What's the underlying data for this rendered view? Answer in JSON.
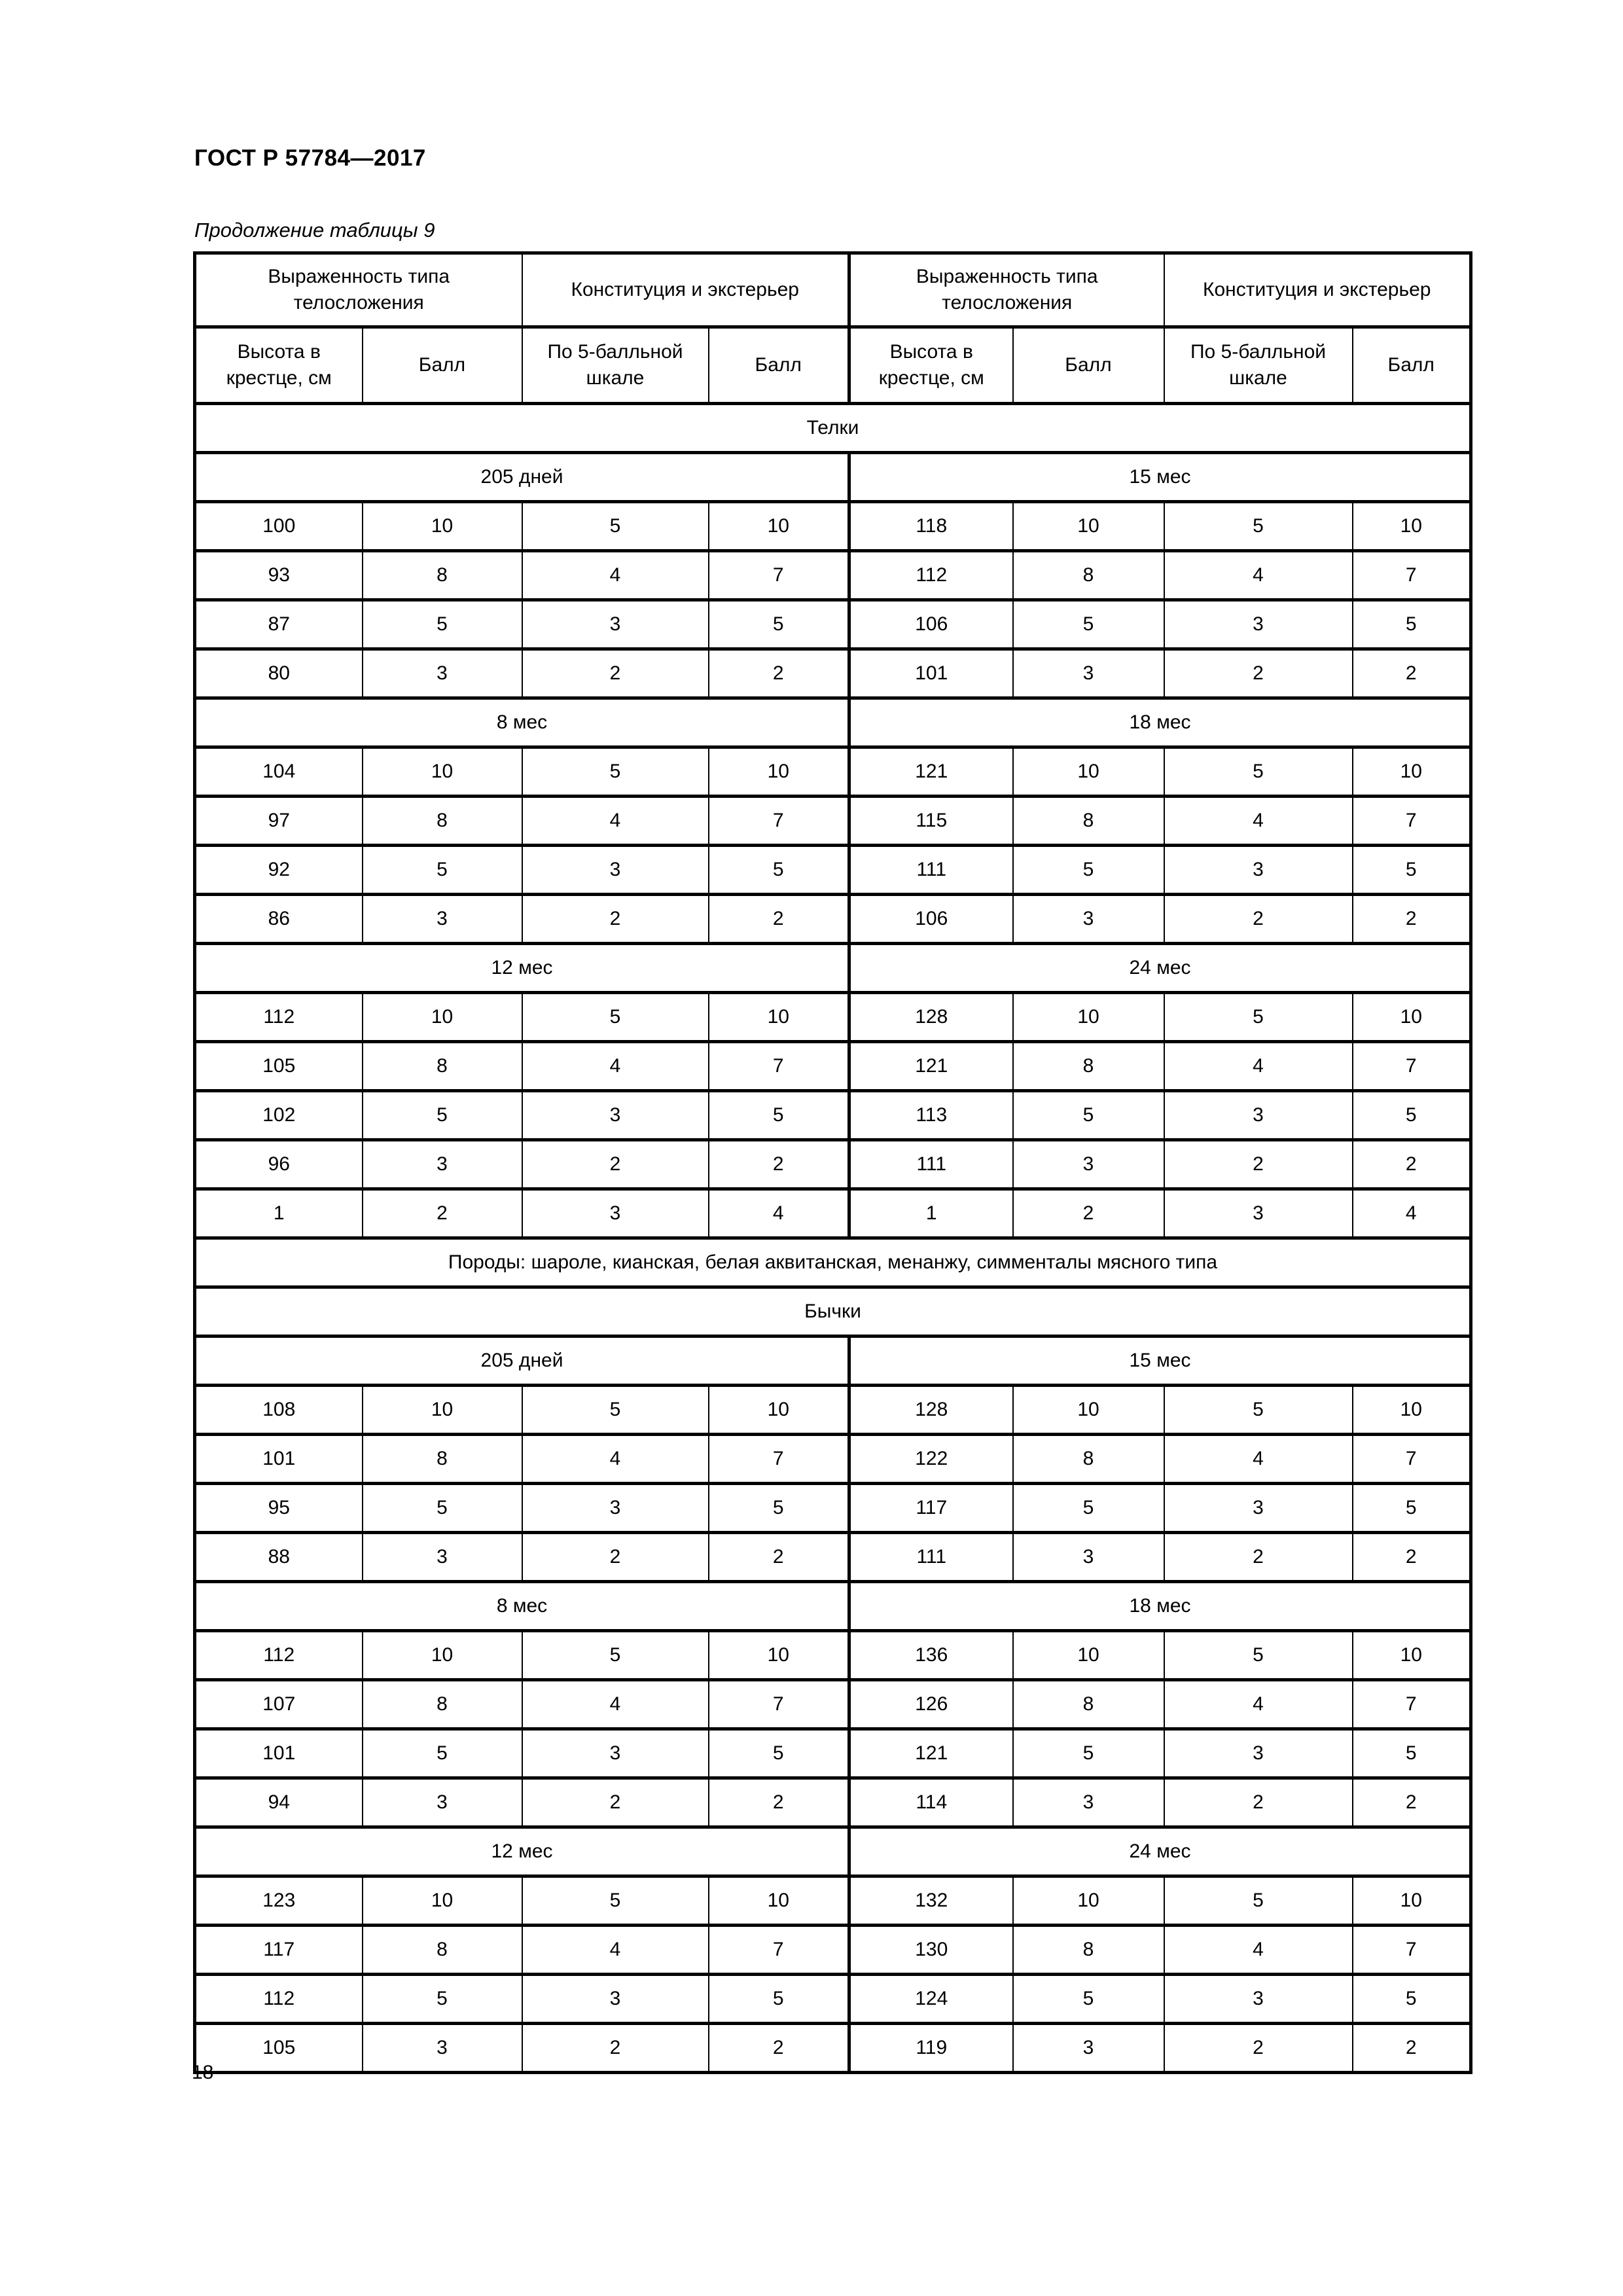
{
  "page": {
    "doc_code": "ГОСТ Р 57784—2017",
    "table_caption": "Продолжение таблицы 9",
    "page_number": "18"
  },
  "table": {
    "header": {
      "body_type_group": "Выраженность типа телосложения",
      "constitution_group": "Конституция и экстерьер",
      "height_col": "Высота в крестце, см",
      "score_col": "Балл",
      "five_point_col": "По 5-балльной шкале"
    },
    "sections": [
      {
        "title": "Телки",
        "blocks": [
          {
            "left_age": "205 дней",
            "right_age": "15 мес",
            "rows": [
              [
                100,
                10,
                5,
                10,
                118,
                10,
                5,
                10
              ],
              [
                93,
                8,
                4,
                7,
                112,
                8,
                4,
                7
              ],
              [
                87,
                5,
                3,
                5,
                106,
                5,
                3,
                5
              ],
              [
                80,
                3,
                2,
                2,
                101,
                3,
                2,
                2
              ]
            ]
          },
          {
            "left_age": "8 мес",
            "right_age": "18 мес",
            "rows": [
              [
                104,
                10,
                5,
                10,
                121,
                10,
                5,
                10
              ],
              [
                97,
                8,
                4,
                7,
                115,
                8,
                4,
                7
              ],
              [
                92,
                5,
                3,
                5,
                111,
                5,
                3,
                5
              ],
              [
                86,
                3,
                2,
                2,
                106,
                3,
                2,
                2
              ]
            ]
          },
          {
            "left_age": "12 мес",
            "right_age": "24 мес",
            "rows": [
              [
                112,
                10,
                5,
                10,
                128,
                10,
                5,
                10
              ],
              [
                105,
                8,
                4,
                7,
                121,
                8,
                4,
                7
              ],
              [
                102,
                5,
                3,
                5,
                113,
                5,
                3,
                5
              ],
              [
                96,
                3,
                2,
                2,
                111,
                3,
                2,
                2
              ],
              [
                1,
                2,
                3,
                4,
                1,
                2,
                3,
                4
              ]
            ]
          }
        ]
      },
      {
        "note": "Породы: шароле, кианская, белая аквитанская, менанжу, симменталы мясного типа"
      },
      {
        "title": "Бычки",
        "blocks": [
          {
            "left_age": "205 дней",
            "right_age": "15 мес",
            "rows": [
              [
                108,
                10,
                5,
                10,
                128,
                10,
                5,
                10
              ],
              [
                101,
                8,
                4,
                7,
                122,
                8,
                4,
                7
              ],
              [
                95,
                5,
                3,
                5,
                117,
                5,
                3,
                5
              ],
              [
                88,
                3,
                2,
                2,
                111,
                3,
                2,
                2
              ]
            ]
          },
          {
            "left_age": "8 мес",
            "right_age": "18 мес",
            "rows": [
              [
                112,
                10,
                5,
                10,
                136,
                10,
                5,
                10
              ],
              [
                107,
                8,
                4,
                7,
                126,
                8,
                4,
                7
              ],
              [
                101,
                5,
                3,
                5,
                121,
                5,
                3,
                5
              ],
              [
                94,
                3,
                2,
                2,
                114,
                3,
                2,
                2
              ]
            ]
          },
          {
            "left_age": "12 мес",
            "right_age": "24 мес",
            "rows": [
              [
                123,
                10,
                5,
                10,
                132,
                10,
                5,
                10
              ],
              [
                117,
                8,
                4,
                7,
                130,
                8,
                4,
                7
              ],
              [
                112,
                5,
                3,
                5,
                124,
                5,
                3,
                5
              ],
              [
                105,
                3,
                2,
                2,
                119,
                3,
                2,
                2
              ]
            ]
          }
        ]
      }
    ]
  }
}
